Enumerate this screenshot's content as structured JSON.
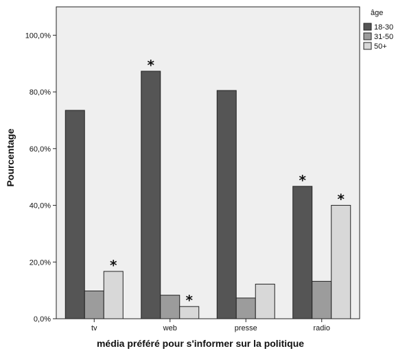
{
  "chart_data": {
    "type": "bar",
    "title": "",
    "xlabel": "média préféré pour s'informer sur la politique",
    "ylabel": "Pourcentage",
    "categories": [
      "tv",
      "web",
      "presse",
      "radio"
    ],
    "ylim": [
      0,
      110
    ],
    "yticks": [
      0,
      20,
      40,
      60,
      80,
      100
    ],
    "ytick_labels": [
      "0,0%",
      "20,0%",
      "40,0%",
      "60,0%",
      "80,0%",
      "100,0%"
    ],
    "grid": false,
    "legend_title": "âge",
    "legend_position": "right",
    "plot_background": "#efefef",
    "series": [
      {
        "name": "18-30",
        "color": "#555555",
        "values": [
          73.5,
          87.3,
          80.5,
          46.7
        ]
      },
      {
        "name": "31-50",
        "color": "#9c9c9c",
        "values": [
          9.8,
          8.3,
          7.3,
          13.2
        ]
      },
      {
        "name": "50+",
        "color": "#d8d8d8",
        "values": [
          16.7,
          4.3,
          12.2,
          40.0
        ]
      }
    ],
    "significance_marker": "*",
    "significance": [
      [
        false,
        true,
        false,
        true
      ],
      [
        false,
        false,
        false,
        false
      ],
      [
        true,
        true,
        false,
        true
      ]
    ]
  }
}
